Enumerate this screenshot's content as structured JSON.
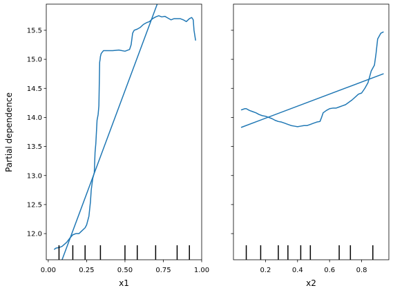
{
  "figure": {
    "line_color": "#1f77b4",
    "ylabel": "Partial dependence",
    "ylim": [
      11.55,
      15.95
    ],
    "yticks": [
      12.0,
      12.5,
      13.0,
      13.5,
      14.0,
      14.5,
      15.0,
      15.5
    ],
    "ytick_labels": [
      "12.0",
      "12.5",
      "13.0",
      "13.5",
      "14.0",
      "14.5",
      "15.0",
      "15.5"
    ],
    "shared_y": true
  },
  "chart_data": [
    {
      "type": "line",
      "xlabel": "x1",
      "xlim": [
        -0.013,
        1.0
      ],
      "xticks": [
        0.0,
        0.25,
        0.5,
        0.75,
        1.0
      ],
      "xtick_labels": [
        "0.00",
        "0.25",
        "0.50",
        "0.75",
        "1.00"
      ],
      "series": [
        {
          "kind": "partial_dependence",
          "x": [
            0.04,
            0.05,
            0.07,
            0.09,
            0.12,
            0.14,
            0.16,
            0.18,
            0.2,
            0.22,
            0.24,
            0.25,
            0.265,
            0.275,
            0.28,
            0.29,
            0.3,
            0.305,
            0.31,
            0.318,
            0.325,
            0.33,
            0.335,
            0.338,
            0.34,
            0.345,
            0.36,
            0.38,
            0.42,
            0.46,
            0.5,
            0.53,
            0.54,
            0.55,
            0.56,
            0.58,
            0.6,
            0.62,
            0.64,
            0.66,
            0.68,
            0.7,
            0.72,
            0.74,
            0.76,
            0.78,
            0.8,
            0.82,
            0.84,
            0.86,
            0.88,
            0.9,
            0.92,
            0.935,
            0.945,
            0.95,
            0.96
          ],
          "y": [
            11.73,
            11.75,
            11.76,
            11.78,
            11.85,
            11.92,
            11.98,
            12.0,
            12.0,
            12.05,
            12.1,
            12.15,
            12.3,
            12.55,
            12.75,
            12.95,
            13.05,
            13.4,
            13.55,
            13.95,
            14.05,
            14.2,
            14.95,
            15.0,
            15.05,
            15.1,
            15.15,
            15.15,
            15.15,
            15.16,
            15.14,
            15.17,
            15.25,
            15.45,
            15.5,
            15.52,
            15.55,
            15.6,
            15.63,
            15.65,
            15.7,
            15.73,
            15.75,
            15.73,
            15.74,
            15.71,
            15.68,
            15.7,
            15.7,
            15.7,
            15.68,
            15.65,
            15.7,
            15.72,
            15.68,
            15.5,
            15.33
          ]
        },
        {
          "kind": "linear_fit",
          "x": [
            0.09,
            0.71
          ],
          "y": [
            11.55,
            15.95
          ]
        }
      ],
      "rug": [
        0.07,
        0.16,
        0.24,
        0.34,
        0.5,
        0.58,
        0.7,
        0.84,
        0.92
      ]
    },
    {
      "type": "line",
      "xlabel": "x2",
      "xlim": [
        0.0,
        0.97
      ],
      "xticks": [
        0.2,
        0.4,
        0.6,
        0.8
      ],
      "xtick_labels": [
        "0.2",
        "0.4",
        "0.6",
        "0.8"
      ],
      "series": [
        {
          "kind": "partial_dependence",
          "x": [
            0.05,
            0.06,
            0.07,
            0.08,
            0.1,
            0.12,
            0.14,
            0.16,
            0.18,
            0.2,
            0.22,
            0.24,
            0.26,
            0.28,
            0.3,
            0.32,
            0.34,
            0.36,
            0.38,
            0.4,
            0.42,
            0.44,
            0.46,
            0.48,
            0.5,
            0.52,
            0.54,
            0.55,
            0.56,
            0.58,
            0.6,
            0.62,
            0.64,
            0.66,
            0.68,
            0.7,
            0.72,
            0.74,
            0.76,
            0.78,
            0.8,
            0.82,
            0.84,
            0.85,
            0.86,
            0.87,
            0.88,
            0.89,
            0.9,
            0.91,
            0.92,
            0.935
          ],
          "y": [
            14.13,
            14.14,
            14.15,
            14.15,
            14.12,
            14.1,
            14.08,
            14.05,
            14.03,
            14.02,
            14.0,
            13.98,
            13.95,
            13.93,
            13.92,
            13.9,
            13.88,
            13.86,
            13.85,
            13.84,
            13.85,
            13.86,
            13.86,
            13.88,
            13.9,
            13.92,
            13.93,
            14.0,
            14.08,
            14.12,
            14.15,
            14.16,
            14.16,
            14.18,
            14.2,
            14.22,
            14.26,
            14.3,
            14.35,
            14.4,
            14.42,
            14.5,
            14.6,
            14.7,
            14.8,
            14.85,
            14.9,
            15.1,
            15.35,
            15.4,
            15.45,
            15.47
          ]
        },
        {
          "kind": "linear_fit",
          "x": [
            0.05,
            0.935
          ],
          "y": [
            13.83,
            14.75
          ]
        }
      ],
      "rug": [
        0.08,
        0.17,
        0.28,
        0.34,
        0.42,
        0.48,
        0.66,
        0.73,
        0.87
      ]
    }
  ]
}
